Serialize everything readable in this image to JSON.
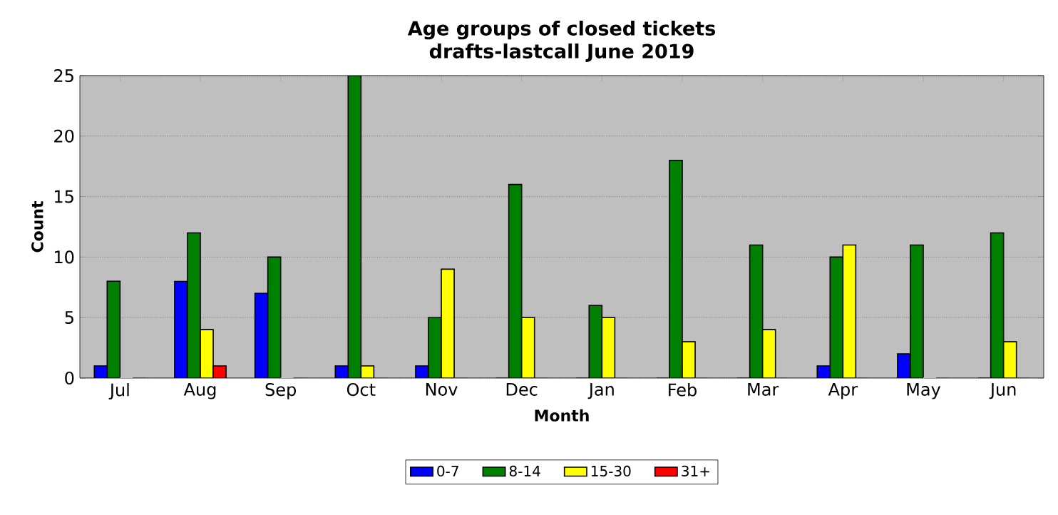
{
  "chart_data": {
    "type": "bar",
    "title": "Age groups of closed tickets\ndrafts-lastcall June 2019",
    "xlabel": "Month",
    "ylabel": "Count",
    "categories": [
      "Jul",
      "Aug",
      "Sep",
      "Oct",
      "Nov",
      "Dec",
      "Jan",
      "Feb",
      "Mar",
      "Apr",
      "May",
      "Jun"
    ],
    "series": [
      {
        "name": "0-7",
        "color": "#0000ff",
        "values": [
          1,
          8,
          7,
          1,
          1,
          0,
          0,
          0,
          0,
          1,
          2,
          0
        ]
      },
      {
        "name": "8-14",
        "color": "#008000",
        "values": [
          8,
          12,
          10,
          25,
          5,
          16,
          6,
          18,
          11,
          10,
          11,
          12
        ]
      },
      {
        "name": "15-30",
        "color": "#ffff00",
        "values": [
          0,
          4,
          0,
          1,
          9,
          5,
          5,
          3,
          4,
          11,
          0,
          3
        ]
      },
      {
        "name": "31+",
        "color": "#ff0000",
        "values": [
          0,
          1,
          0,
          0,
          0,
          0,
          0,
          0,
          0,
          0,
          0,
          0
        ]
      }
    ],
    "ylim": [
      0,
      25
    ],
    "yticks": [
      0,
      5,
      10,
      15,
      20,
      25
    ],
    "grid": "y",
    "legend": "bottom"
  }
}
